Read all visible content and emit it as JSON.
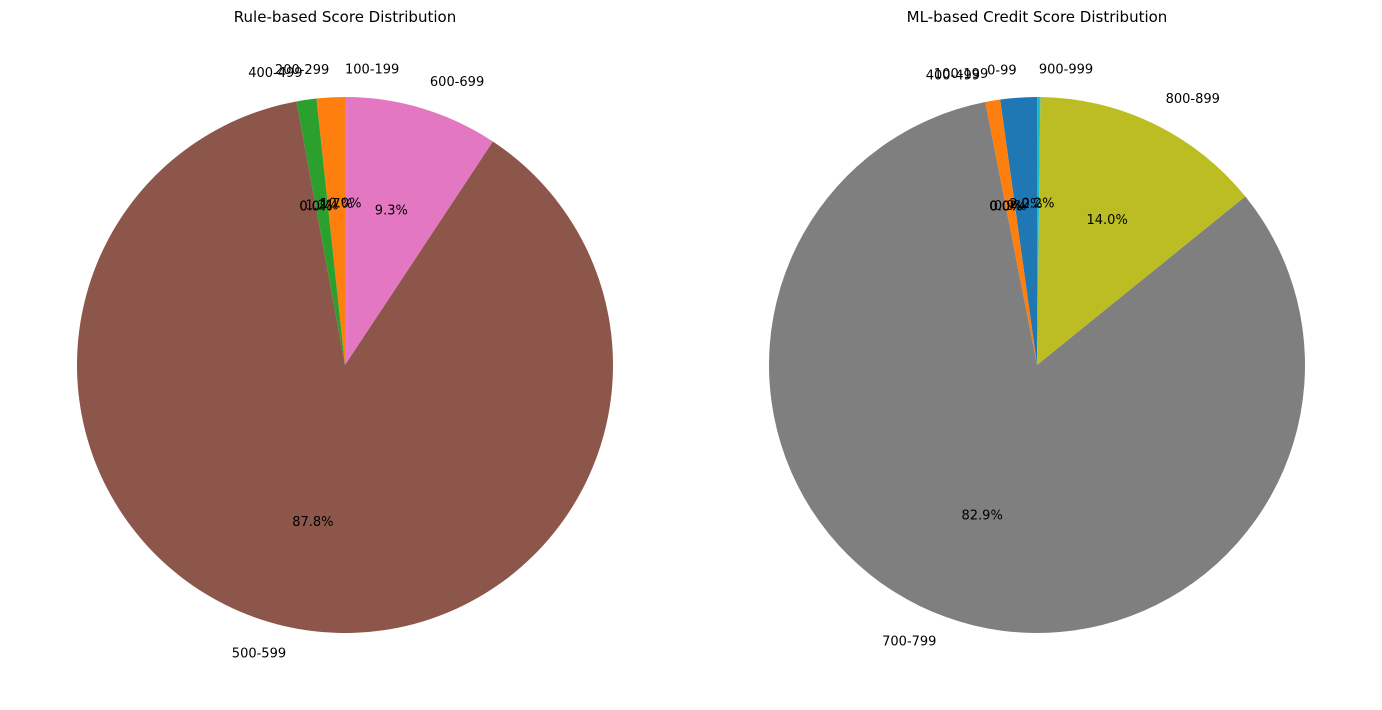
{
  "chart_data": [
    {
      "type": "pie",
      "title": "Rule-based Score Distribution",
      "start_angle_deg": 90,
      "direction": "counterclockwise",
      "slices": [
        {
          "label": "100-199",
          "percent": 0.0,
          "pct_label": "0.0%",
          "color": "#1f77b4"
        },
        {
          "label": "200-299",
          "percent": 1.7,
          "pct_label": "1.7%",
          "color": "#ff7f0e"
        },
        {
          "label": "400-499",
          "percent": 1.2,
          "pct_label": "1.2%",
          "color": "#2ca02c"
        },
        {
          "label": "",
          "percent": 0.0,
          "pct_label": "0.0%",
          "color": "#d62728"
        },
        {
          "label": "",
          "percent": 0.0,
          "pct_label": "0.0%",
          "color": "#9467bd"
        },
        {
          "label": "500-599",
          "percent": 87.8,
          "pct_label": "87.8%",
          "color": "#8c564b"
        },
        {
          "label": "600-699",
          "percent": 9.3,
          "pct_label": "9.3%",
          "color": "#e377c2"
        }
      ]
    },
    {
      "type": "pie",
      "title": "ML-based Credit Score Distribution",
      "start_angle_deg": 90,
      "direction": "counterclockwise",
      "slices": [
        {
          "label": "0-99",
          "percent": 2.2,
          "pct_label": "2.2%",
          "color": "#1f77b4"
        },
        {
          "label": "100-199",
          "percent": 0.9,
          "pct_label": "0.9%",
          "color": "#ff7f0e"
        },
        {
          "label": "",
          "percent": 0.0,
          "pct_label": "0.0%",
          "color": "#2ca02c"
        },
        {
          "label": "",
          "percent": 0.0,
          "pct_label": "0.0%",
          "color": "#d62728"
        },
        {
          "label": "400-499",
          "percent": 0.0,
          "pct_label": "0.0%",
          "color": "#9467bd"
        },
        {
          "label": "",
          "percent": 0.0,
          "pct_label": "0.0%",
          "color": "#8c564b"
        },
        {
          "label": "",
          "percent": 0.0,
          "pct_label": "0.0%",
          "color": "#e377c2"
        },
        {
          "label": "700-799",
          "percent": 82.9,
          "pct_label": "82.9%",
          "color": "#7f7f7f"
        },
        {
          "label": "800-899",
          "percent": 14.0,
          "pct_label": "14.0%",
          "color": "#bcbd22"
        },
        {
          "label": "900-999",
          "percent": 0.2,
          "pct_label": "0.2%",
          "color": "#17becf"
        }
      ]
    }
  ]
}
